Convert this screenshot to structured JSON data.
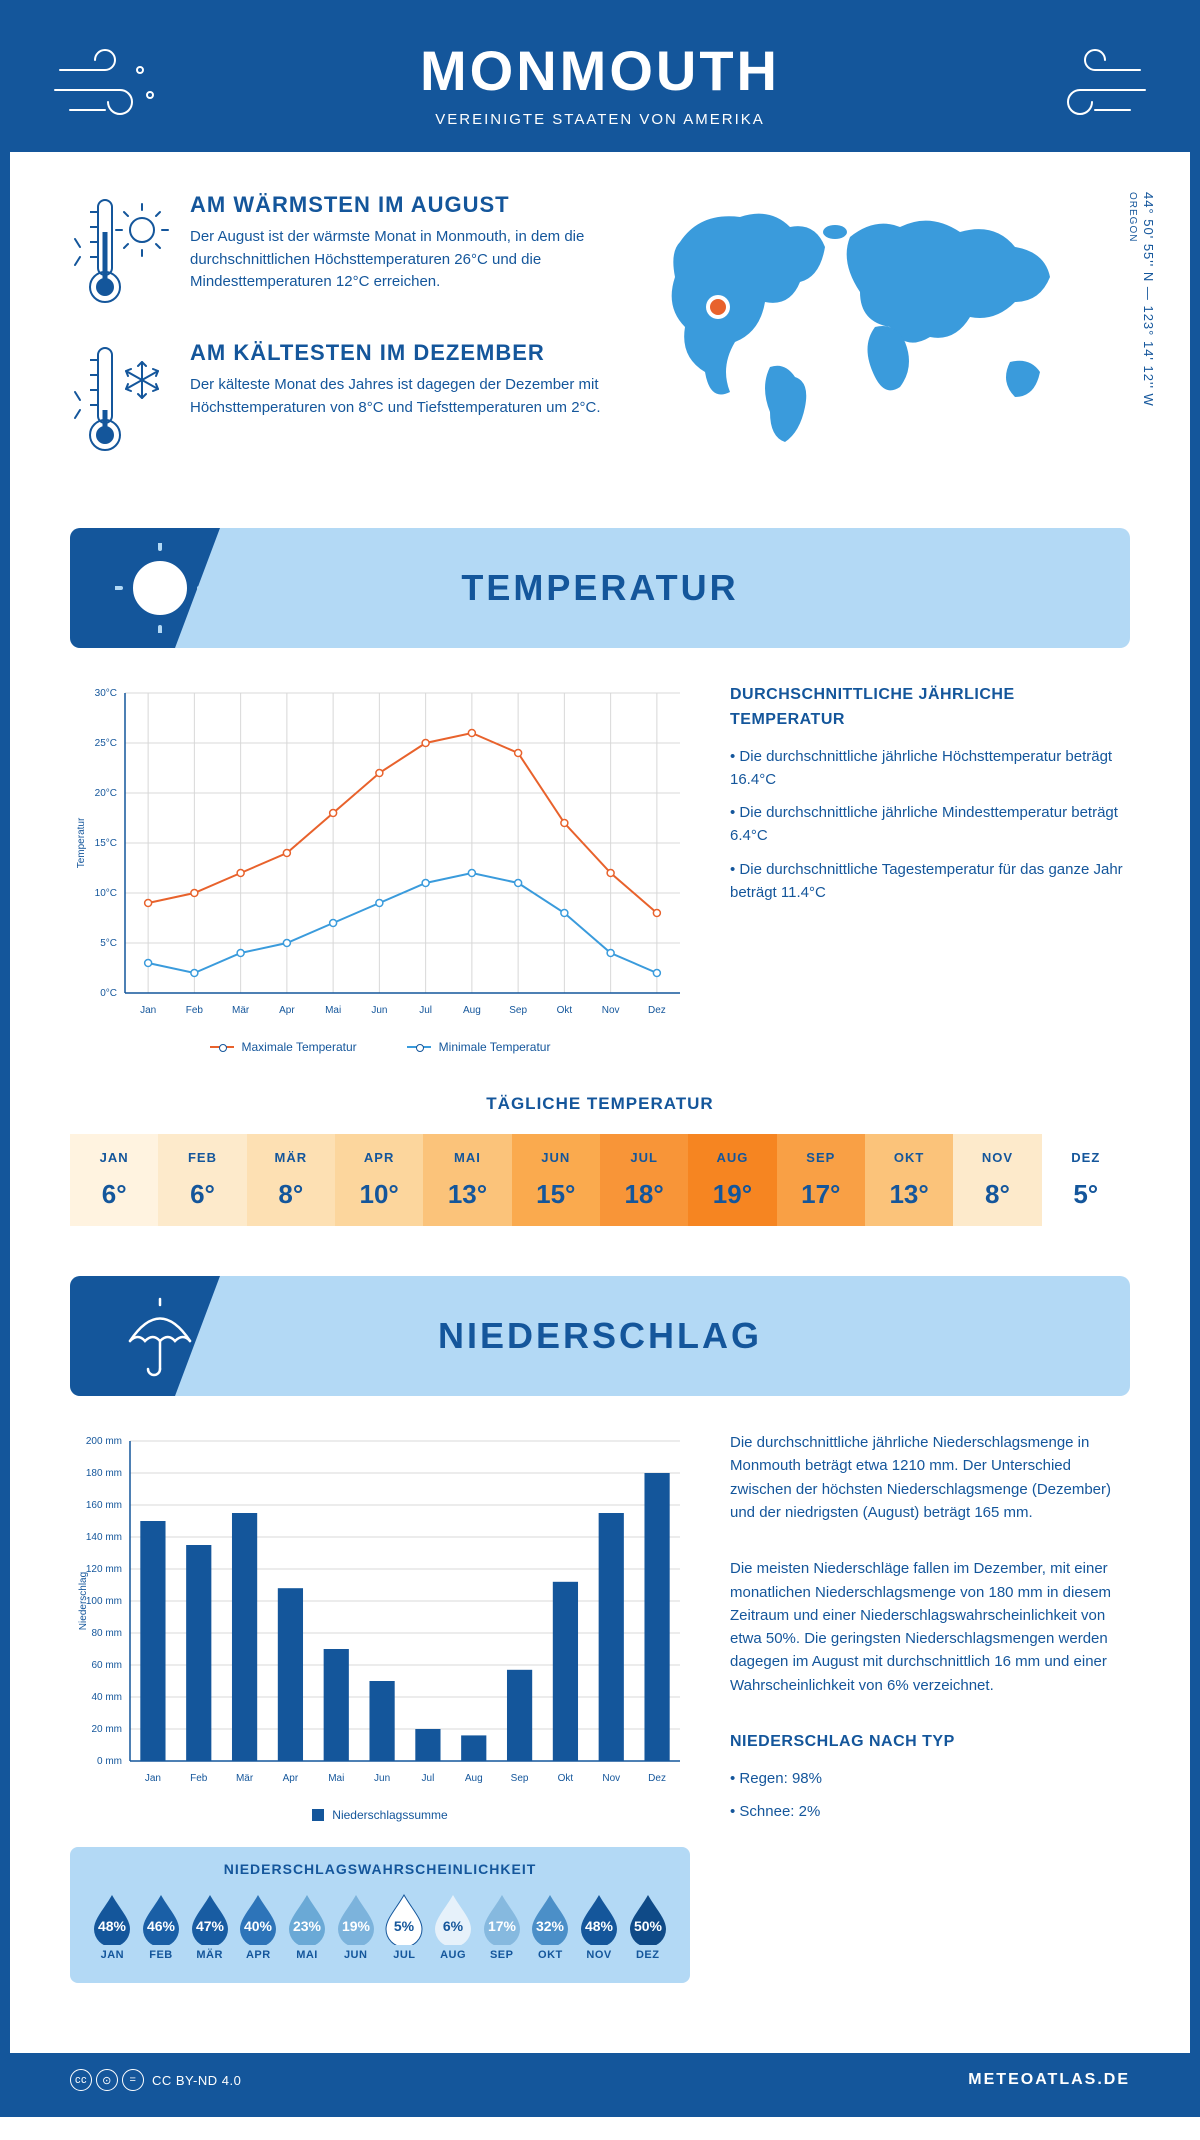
{
  "header": {
    "title": "MONMOUTH",
    "subtitle": "VEREINIGTE STAATEN VON AMERIKA"
  },
  "coords": "44° 50' 55'' N — 123° 14' 12'' W",
  "region": "OREGON",
  "facts": {
    "warm": {
      "title": "AM WÄRMSTEN IM AUGUST",
      "text": "Der August ist der wärmste Monat in Monmouth, in dem die durchschnittlichen Höchsttemperaturen 26°C und die Mindesttemperaturen 12°C erreichen."
    },
    "cold": {
      "title": "AM KÄLTESTEN IM DEZEMBER",
      "text": "Der kälteste Monat des Jahres ist dagegen der Dezember mit Höchsttemperaturen von 8°C und Tiefsttemperaturen um 2°C."
    }
  },
  "sections": {
    "temp": "TEMPERATUR",
    "precip": "NIEDERSCHLAG"
  },
  "temp_chart": {
    "months": [
      "Jan",
      "Feb",
      "Mär",
      "Apr",
      "Mai",
      "Jun",
      "Jul",
      "Aug",
      "Sep",
      "Okt",
      "Nov",
      "Dez"
    ],
    "max": [
      9,
      10,
      12,
      14,
      18,
      22,
      25,
      26,
      24,
      17,
      12,
      8
    ],
    "min": [
      3,
      2,
      4,
      5,
      7,
      9,
      11,
      12,
      11,
      8,
      4,
      2
    ],
    "ylim": [
      0,
      30
    ],
    "ytick": 5,
    "ylabel": "Temperatur",
    "colors": {
      "max": "#e8622c",
      "min": "#3a9bdc",
      "grid": "#d8d8d8",
      "bg": "#ffffff"
    },
    "legend": {
      "max": "Maximale Temperatur",
      "min": "Minimale Temperatur"
    }
  },
  "temp_info": {
    "title": "DURCHSCHNITTLICHE JÄHRLICHE TEMPERATUR",
    "b1": "• Die durchschnittliche jährliche Höchsttemperatur beträgt 16.4°C",
    "b2": "• Die durchschnittliche jährliche Mindesttemperatur beträgt 6.4°C",
    "b3": "• Die durchschnittliche Tagestemperatur für das ganze Jahr beträgt 11.4°C"
  },
  "daily": {
    "title": "TÄGLICHE TEMPERATUR",
    "months": [
      "JAN",
      "FEB",
      "MÄR",
      "APR",
      "MAI",
      "JUN",
      "JUL",
      "AUG",
      "SEP",
      "OKT",
      "NOV",
      "DEZ"
    ],
    "values": [
      "6°",
      "6°",
      "8°",
      "10°",
      "13°",
      "15°",
      "18°",
      "19°",
      "17°",
      "13°",
      "8°",
      "5°"
    ],
    "colors": [
      "#fff3e0",
      "#fdeacb",
      "#fde0b3",
      "#fcd69d",
      "#fbc37a",
      "#faaa4e",
      "#f89538",
      "#f68521",
      "#f9a045",
      "#fbc37a",
      "#fdeacb",
      "#ffffff"
    ]
  },
  "precip_chart": {
    "months": [
      "Jan",
      "Feb",
      "Mär",
      "Apr",
      "Mai",
      "Jun",
      "Jul",
      "Aug",
      "Sep",
      "Okt",
      "Nov",
      "Dez"
    ],
    "values": [
      150,
      135,
      155,
      108,
      70,
      50,
      20,
      16,
      57,
      112,
      155,
      180
    ],
    "ylim": [
      0,
      200
    ],
    "ytick": 20,
    "ylabel": "Niederschlag",
    "bar_color": "#14569b",
    "grid": "#d8d8d8",
    "legend": "Niederschlagssumme"
  },
  "precip_info": {
    "p1": "Die durchschnittliche jährliche Niederschlagsmenge in Monmouth beträgt etwa 1210 mm. Der Unterschied zwischen der höchsten Niederschlagsmenge (Dezember) und der niedrigsten (August) beträgt 165 mm.",
    "p2": "Die meisten Niederschläge fallen im Dezember, mit einer monatlichen Niederschlagsmenge von 180 mm in diesem Zeitraum und einer Niederschlagswahrscheinlichkeit von etwa 50%. Die geringsten Niederschlagsmengen werden dagegen im August mit durchschnittlich 16 mm und einer Wahrscheinlichkeit von 6% verzeichnet.",
    "type_title": "NIEDERSCHLAG NACH TYP",
    "t1": "• Regen: 98%",
    "t2": "• Schnee: 2%"
  },
  "precip_prob": {
    "title": "NIEDERSCHLAGSWAHRSCHEINLICHKEIT",
    "months": [
      "JAN",
      "FEB",
      "MÄR",
      "APR",
      "MAI",
      "JUN",
      "JUL",
      "AUG",
      "SEP",
      "OKT",
      "NOV",
      "DEZ"
    ],
    "values": [
      "48%",
      "46%",
      "47%",
      "40%",
      "23%",
      "19%",
      "5%",
      "6%",
      "17%",
      "32%",
      "48%",
      "50%"
    ],
    "colors": [
      "#14569b",
      "#1a5fa6",
      "#185ca2",
      "#2d74b9",
      "#6aa9d6",
      "#7cb3dc",
      "#ffffff",
      "#e6f1fa",
      "#86b9df",
      "#4b8fc8",
      "#14569b",
      "#0f4a87"
    ],
    "text_colors": [
      "#fff",
      "#fff",
      "#fff",
      "#fff",
      "#fff",
      "#fff",
      "#14569b",
      "#14569b",
      "#fff",
      "#fff",
      "#fff",
      "#fff"
    ]
  },
  "footer": {
    "license": "CC BY-ND 4.0",
    "brand": "METEOATLAS.DE"
  }
}
